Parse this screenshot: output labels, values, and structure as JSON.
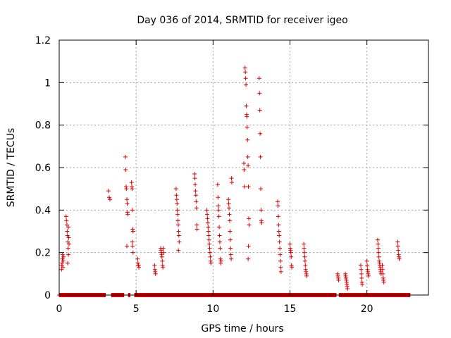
{
  "chart_data": {
    "type": "scatter",
    "title": "Day 036 of 2014, SRMTID for receiver igeo",
    "xlabel": "GPS time / hours",
    "ylabel": "SRMTID / TECUs",
    "xlim": [
      0,
      24
    ],
    "ylim": [
      0,
      1.2
    ],
    "xticks": [
      {
        "value": 0,
        "label": "0"
      },
      {
        "value": 5,
        "label": "5"
      },
      {
        "value": 10,
        "label": "10"
      },
      {
        "value": 15,
        "label": "15"
      },
      {
        "value": 20,
        "label": "20"
      }
    ],
    "yticks": [
      {
        "value": 0,
        "label": "0"
      },
      {
        "value": 0.2,
        "label": "0.2"
      },
      {
        "value": 0.4,
        "label": "0.4"
      },
      {
        "value": 0.6,
        "label": "0.6"
      },
      {
        "value": 0.8,
        "label": "0.8"
      },
      {
        "value": 1.0,
        "label": "1"
      },
      {
        "value": 1.2,
        "label": "1.2"
      }
    ],
    "grid": true,
    "marker": "+",
    "color": "#dd0000",
    "series": [
      {
        "name": "SRMTID",
        "points": [
          [
            0.15,
            0.12
          ],
          [
            0.17,
            0.14
          ],
          [
            0.19,
            0.15
          ],
          [
            0.21,
            0.17
          ],
          [
            0.22,
            0.19
          ],
          [
            0.24,
            0.13
          ],
          [
            0.26,
            0.16
          ],
          [
            0.28,
            0.18
          ],
          [
            0.45,
            0.37
          ],
          [
            0.47,
            0.35
          ],
          [
            0.5,
            0.33
          ],
          [
            0.52,
            0.3
          ],
          [
            0.54,
            0.28
          ],
          [
            0.56,
            0.25
          ],
          [
            0.58,
            0.22
          ],
          [
            0.6,
            0.32
          ],
          [
            0.62,
            0.27
          ],
          [
            0.64,
            0.24
          ],
          [
            0.55,
            0.15
          ],
          [
            0.6,
            0.19
          ],
          [
            3.2,
            0.49
          ],
          [
            3.25,
            0.46
          ],
          [
            3.3,
            0.45
          ],
          [
            4.3,
            0.65
          ],
          [
            4.32,
            0.59
          ],
          [
            4.35,
            0.51
          ],
          [
            4.37,
            0.5
          ],
          [
            4.4,
            0.45
          ],
          [
            4.42,
            0.43
          ],
          [
            4.44,
            0.39
          ],
          [
            4.46,
            0.38
          ],
          [
            4.4,
            0.23
          ],
          [
            4.7,
            0.53
          ],
          [
            4.72,
            0.51
          ],
          [
            4.74,
            0.5
          ],
          [
            4.76,
            0.4
          ],
          [
            4.78,
            0.31
          ],
          [
            4.8,
            0.3
          ],
          [
            4.75,
            0.25
          ],
          [
            4.77,
            0.23
          ],
          [
            4.8,
            0.2
          ],
          [
            5.1,
            0.17
          ],
          [
            5.12,
            0.15
          ],
          [
            5.14,
            0.14
          ],
          [
            5.16,
            0.14
          ],
          [
            5.18,
            0.13
          ],
          [
            6.2,
            0.14
          ],
          [
            6.22,
            0.12
          ],
          [
            6.24,
            0.11
          ],
          [
            6.26,
            0.1
          ],
          [
            6.6,
            0.22
          ],
          [
            6.62,
            0.21
          ],
          [
            6.64,
            0.2
          ],
          [
            6.66,
            0.19
          ],
          [
            6.68,
            0.18
          ],
          [
            6.7,
            0.16
          ],
          [
            6.72,
            0.14
          ],
          [
            6.74,
            0.13
          ],
          [
            6.76,
            0.22
          ],
          [
            6.78,
            0.2
          ],
          [
            7.6,
            0.5
          ],
          [
            7.62,
            0.47
          ],
          [
            7.64,
            0.45
          ],
          [
            7.66,
            0.43
          ],
          [
            7.68,
            0.4
          ],
          [
            7.7,
            0.38
          ],
          [
            7.72,
            0.35
          ],
          [
            7.74,
            0.33
          ],
          [
            7.76,
            0.3
          ],
          [
            7.78,
            0.28
          ],
          [
            7.8,
            0.25
          ],
          [
            7.75,
            0.21
          ],
          [
            8.8,
            0.57
          ],
          [
            8.82,
            0.55
          ],
          [
            8.84,
            0.52
          ],
          [
            8.86,
            0.49
          ],
          [
            8.88,
            0.47
          ],
          [
            8.9,
            0.44
          ],
          [
            8.92,
            0.41
          ],
          [
            8.94,
            0.33
          ],
          [
            8.96,
            0.31
          ],
          [
            9.6,
            0.4
          ],
          [
            9.62,
            0.38
          ],
          [
            9.64,
            0.36
          ],
          [
            9.66,
            0.34
          ],
          [
            9.68,
            0.32
          ],
          [
            9.7,
            0.3
          ],
          [
            9.72,
            0.28
          ],
          [
            9.74,
            0.26
          ],
          [
            9.76,
            0.24
          ],
          [
            9.78,
            0.22
          ],
          [
            9.8,
            0.2
          ],
          [
            9.82,
            0.18
          ],
          [
            9.84,
            0.16
          ],
          [
            9.86,
            0.15
          ],
          [
            10.3,
            0.52
          ],
          [
            10.32,
            0.46
          ],
          [
            10.34,
            0.42
          ],
          [
            10.36,
            0.4
          ],
          [
            10.38,
            0.37
          ],
          [
            10.4,
            0.32
          ],
          [
            10.42,
            0.28
          ],
          [
            10.44,
            0.25
          ],
          [
            10.46,
            0.22
          ],
          [
            10.48,
            0.17
          ],
          [
            10.5,
            0.15
          ],
          [
            10.52,
            0.16
          ],
          [
            11.0,
            0.45
          ],
          [
            11.02,
            0.43
          ],
          [
            11.04,
            0.41
          ],
          [
            11.06,
            0.38
          ],
          [
            11.08,
            0.35
          ],
          [
            11.1,
            0.3
          ],
          [
            11.12,
            0.26
          ],
          [
            11.14,
            0.22
          ],
          [
            11.16,
            0.19
          ],
          [
            11.2,
            0.55
          ],
          [
            11.22,
            0.53
          ],
          [
            11.18,
            0.17
          ],
          [
            12.0,
            0.62
          ],
          [
            12.02,
            0.59
          ],
          [
            12.04,
            0.51
          ],
          [
            12.08,
            1.07
          ],
          [
            12.1,
            1.05
          ],
          [
            12.12,
            1.02
          ],
          [
            12.14,
            0.99
          ],
          [
            12.16,
            0.89
          ],
          [
            12.18,
            0.85
          ],
          [
            12.2,
            0.84
          ],
          [
            12.22,
            0.79
          ],
          [
            12.24,
            0.73
          ],
          [
            12.26,
            0.65
          ],
          [
            12.28,
            0.61
          ],
          [
            12.3,
            0.51
          ],
          [
            12.32,
            0.36
          ],
          [
            12.34,
            0.33
          ],
          [
            12.3,
            0.23
          ],
          [
            12.28,
            0.17
          ],
          [
            13.0,
            1.02
          ],
          [
            13.02,
            0.95
          ],
          [
            13.04,
            0.87
          ],
          [
            13.06,
            0.76
          ],
          [
            13.08,
            0.65
          ],
          [
            13.1,
            0.5
          ],
          [
            13.12,
            0.4
          ],
          [
            13.14,
            0.35
          ],
          [
            13.16,
            0.34
          ],
          [
            14.2,
            0.44
          ],
          [
            14.22,
            0.42
          ],
          [
            14.24,
            0.37
          ],
          [
            14.26,
            0.33
          ],
          [
            14.28,
            0.3
          ],
          [
            14.3,
            0.28
          ],
          [
            14.32,
            0.25
          ],
          [
            14.34,
            0.22
          ],
          [
            14.36,
            0.19
          ],
          [
            14.38,
            0.16
          ],
          [
            14.4,
            0.13
          ],
          [
            14.42,
            0.11
          ],
          [
            15.0,
            0.24
          ],
          [
            15.02,
            0.22
          ],
          [
            15.04,
            0.21
          ],
          [
            15.06,
            0.2
          ],
          [
            15.08,
            0.18
          ],
          [
            15.1,
            0.14
          ],
          [
            15.12,
            0.13
          ],
          [
            15.9,
            0.24
          ],
          [
            15.92,
            0.22
          ],
          [
            15.94,
            0.2
          ],
          [
            15.96,
            0.18
          ],
          [
            15.98,
            0.16
          ],
          [
            16.0,
            0.14
          ],
          [
            16.02,
            0.12
          ],
          [
            16.04,
            0.11
          ],
          [
            16.06,
            0.1
          ],
          [
            16.08,
            0.09
          ],
          [
            18.1,
            0.1
          ],
          [
            18.12,
            0.09
          ],
          [
            18.14,
            0.08
          ],
          [
            18.16,
            0.07
          ],
          [
            18.6,
            0.1
          ],
          [
            18.62,
            0.09
          ],
          [
            18.64,
            0.08
          ],
          [
            18.66,
            0.07
          ],
          [
            18.68,
            0.06
          ],
          [
            18.7,
            0.05
          ],
          [
            18.72,
            0.04
          ],
          [
            18.74,
            0.03
          ],
          [
            19.6,
            0.14
          ],
          [
            19.62,
            0.12
          ],
          [
            19.64,
            0.1
          ],
          [
            19.66,
            0.08
          ],
          [
            19.68,
            0.06
          ],
          [
            19.7,
            0.05
          ],
          [
            20.0,
            0.16
          ],
          [
            20.02,
            0.14
          ],
          [
            20.04,
            0.12
          ],
          [
            20.06,
            0.11
          ],
          [
            20.08,
            0.1
          ],
          [
            20.1,
            0.09
          ],
          [
            20.7,
            0.26
          ],
          [
            20.72,
            0.24
          ],
          [
            20.74,
            0.22
          ],
          [
            20.76,
            0.2
          ],
          [
            20.78,
            0.18
          ],
          [
            20.8,
            0.16
          ],
          [
            20.82,
            0.15
          ],
          [
            20.84,
            0.14
          ],
          [
            20.86,
            0.13
          ],
          [
            20.88,
            0.12
          ],
          [
            20.9,
            0.11
          ],
          [
            20.92,
            0.1
          ],
          [
            21.0,
            0.14
          ],
          [
            21.02,
            0.12
          ],
          [
            21.04,
            0.1
          ],
          [
            21.06,
            0.08
          ],
          [
            21.08,
            0.07
          ],
          [
            21.1,
            0.06
          ],
          [
            22.0,
            0.25
          ],
          [
            22.02,
            0.23
          ],
          [
            22.04,
            0.21
          ],
          [
            22.06,
            0.19
          ],
          [
            22.08,
            0.18
          ],
          [
            22.1,
            0.17
          ]
        ],
        "zero_baseline_segments": [
          [
            0.0,
            3.0
          ],
          [
            3.4,
            4.2
          ],
          [
            4.5,
            4.6
          ],
          [
            4.9,
            18.0
          ],
          [
            18.2,
            22.8
          ]
        ]
      }
    ]
  }
}
